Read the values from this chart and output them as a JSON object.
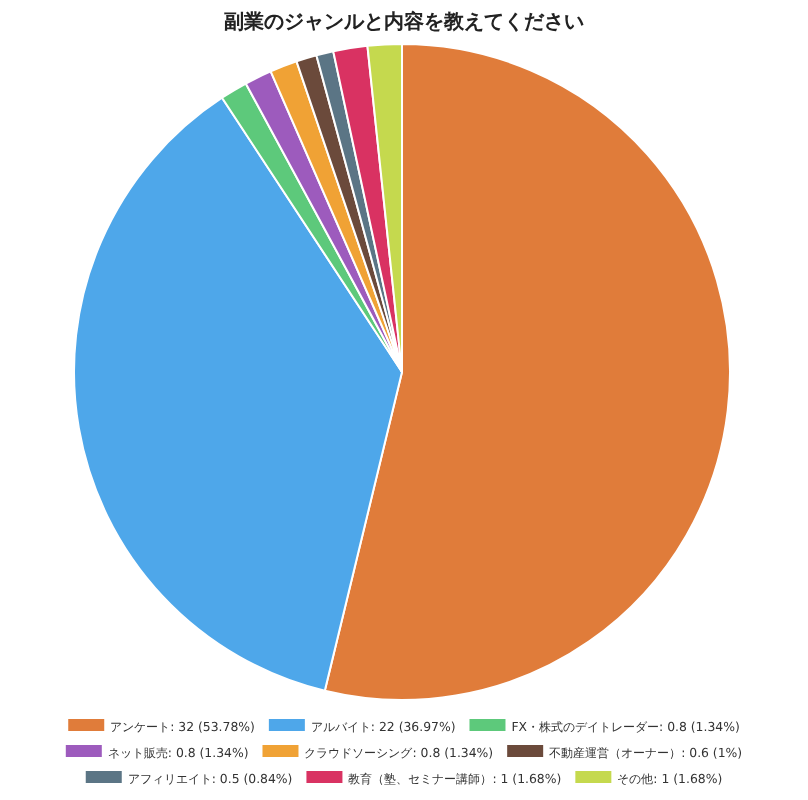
{
  "chart_data": {
    "type": "pie",
    "title": "副業のジャンルと内容を教えてください",
    "categories": [
      "アンケート",
      "アルバイト",
      "FX・株式のデイトレーダー",
      "ネット販売",
      "クラウドソーシング",
      "不動産運営（オーナー）",
      "アフィリエイト",
      "教育（塾、セミナー講師）",
      "その他"
    ],
    "values": [
      32,
      22,
      0.8,
      0.8,
      0.8,
      0.6,
      0.5,
      1,
      1
    ],
    "value_labels": [
      "32 (53.78%)",
      "22 (36.97%)",
      "0.8 (1.34%)",
      "0.8 (1.34%)",
      "0.8 (1.34%)",
      "0.6 (1%)",
      "0.5 (0.84%)",
      "1 (1.68%)",
      "1 (1.68%)"
    ],
    "colors": [
      "#e07c3a",
      "#4ea7ea",
      "#5dc97b",
      "#9d5bbd",
      "#f0a235",
      "#6b4a3b",
      "#5b7585",
      "#d93262",
      "#c5d94e"
    ],
    "legend": "bottom"
  }
}
